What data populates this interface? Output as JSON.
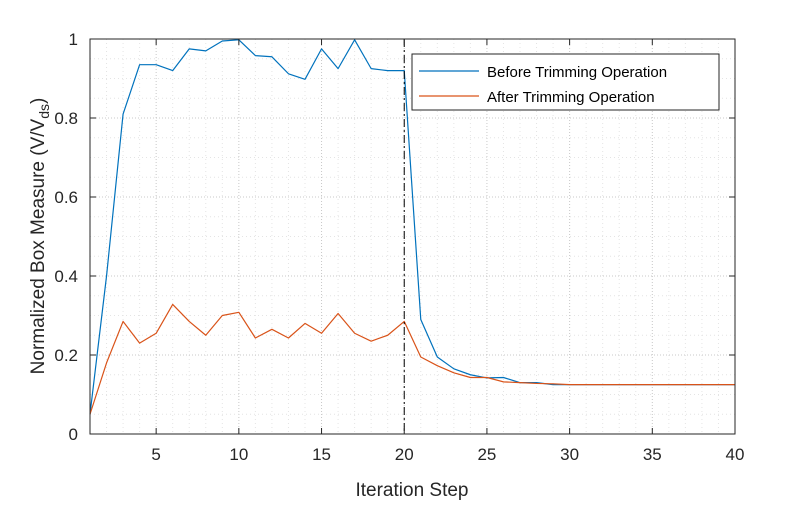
{
  "chart_data": {
    "type": "line",
    "title": "",
    "xlabel": "Iteration Step",
    "ylabel": "Normalized Box Measure (V/V",
    "ylabel_subscript": "ds",
    "ylabel_close": ")",
    "xlim": [
      1,
      40
    ],
    "ylim": [
      0,
      1
    ],
    "x_ticks": [
      5,
      10,
      15,
      20,
      25,
      30,
      35,
      40
    ],
    "y_ticks": [
      0,
      0.2,
      0.4,
      0.6,
      0.8,
      1
    ],
    "x_tick_labels": [
      "5",
      "10",
      "15",
      "20",
      "25",
      "30",
      "35",
      "40"
    ],
    "y_tick_labels": [
      "0",
      "0.2",
      "0.4",
      "0.6",
      "0.8",
      "1"
    ],
    "grid": "major and minor dotted",
    "legend_position": "top-right",
    "vertical_marker": {
      "x": 20,
      "style": "dash-dot",
      "color": "#000000"
    },
    "x": [
      1,
      2,
      3,
      4,
      5,
      6,
      7,
      8,
      9,
      10,
      11,
      12,
      13,
      14,
      15,
      16,
      17,
      18,
      19,
      20,
      21,
      22,
      23,
      24,
      25,
      26,
      27,
      28,
      29,
      30,
      31,
      32,
      33,
      34,
      35,
      36,
      37,
      38,
      39,
      40
    ],
    "series": [
      {
        "name": "Before Trimming Operation",
        "color": "#0072BD",
        "values": [
          0.05,
          0.4,
          0.81,
          0.935,
          0.935,
          0.92,
          0.975,
          0.97,
          0.995,
          0.998,
          0.958,
          0.955,
          0.912,
          0.898,
          0.975,
          0.925,
          0.998,
          0.925,
          0.92,
          0.92,
          0.29,
          0.195,
          0.165,
          0.15,
          0.142,
          0.143,
          0.13,
          0.13,
          0.125,
          0.125,
          0.125,
          0.125,
          0.125,
          0.125,
          0.125,
          0.125,
          0.125,
          0.125,
          0.125,
          0.125
        ]
      },
      {
        "name": "After Trimming Operation",
        "color": "#D95319",
        "values": [
          0.05,
          0.18,
          0.285,
          0.23,
          0.255,
          0.328,
          0.285,
          0.25,
          0.3,
          0.308,
          0.243,
          0.265,
          0.243,
          0.28,
          0.255,
          0.305,
          0.255,
          0.235,
          0.25,
          0.285,
          0.195,
          0.173,
          0.155,
          0.143,
          0.143,
          0.132,
          0.13,
          0.128,
          0.127,
          0.125,
          0.125,
          0.125,
          0.125,
          0.125,
          0.125,
          0.125,
          0.125,
          0.125,
          0.125,
          0.125
        ]
      }
    ]
  }
}
